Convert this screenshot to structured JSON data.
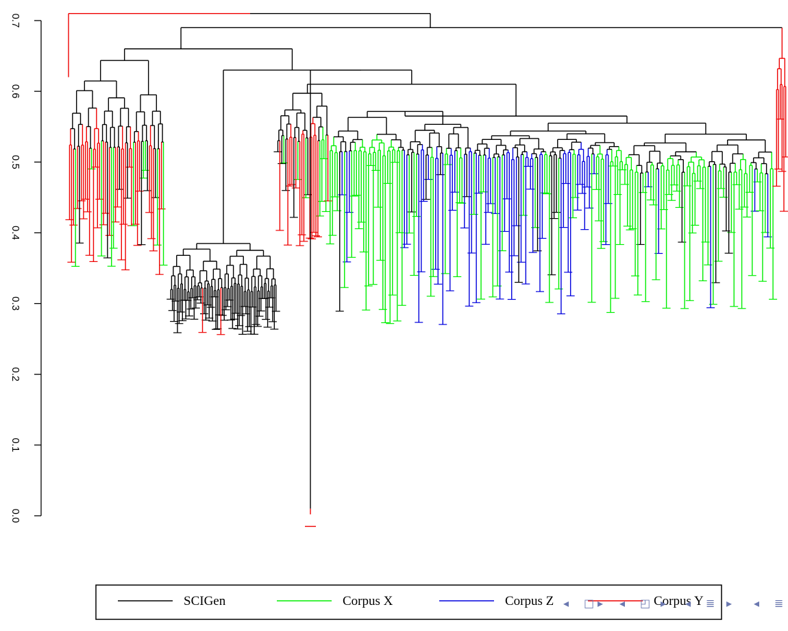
{
  "chart_data": {
    "type": "dendrogram",
    "y_axis": {
      "ticks": [
        "0.0",
        "0.1",
        "0.2",
        "0.3",
        "0.4",
        "0.5",
        "0.6",
        "0.7"
      ],
      "tick_values": [
        0.0,
        0.1,
        0.2,
        0.3,
        0.4,
        0.5,
        0.6,
        0.7
      ],
      "ylim": [
        0.0,
        0.7
      ]
    },
    "series": [
      {
        "name": "SCIGen",
        "color": "#000000"
      },
      {
        "name": "Corpus X",
        "color": "#00ee00"
      },
      {
        "name": "Corpus Z",
        "color": "#0000dd"
      },
      {
        "name": "Corpus Y",
        "color": "#ee0000"
      }
    ],
    "top_merges": [
      {
        "height": 0.71,
        "description": "root"
      },
      {
        "height": 0.69,
        "description": "main cluster"
      },
      {
        "height": 0.63,
        "description": "left SCIGen/corpus Y group"
      },
      {
        "height": 0.55,
        "description": "right mixed corpus X / Z group"
      },
      {
        "height": 0.4,
        "description": "dense SCIGen subtree"
      },
      {
        "height": 0.0,
        "description": "isolated leaf (Corpus Y)"
      }
    ],
    "legend": {
      "position": "bottom"
    }
  },
  "nav_glyphs": [
    "◂",
    "□",
    "▸",
    "◂",
    "◰",
    "▸",
    "◂",
    "≣",
    "▸",
    "◂",
    "≣"
  ]
}
